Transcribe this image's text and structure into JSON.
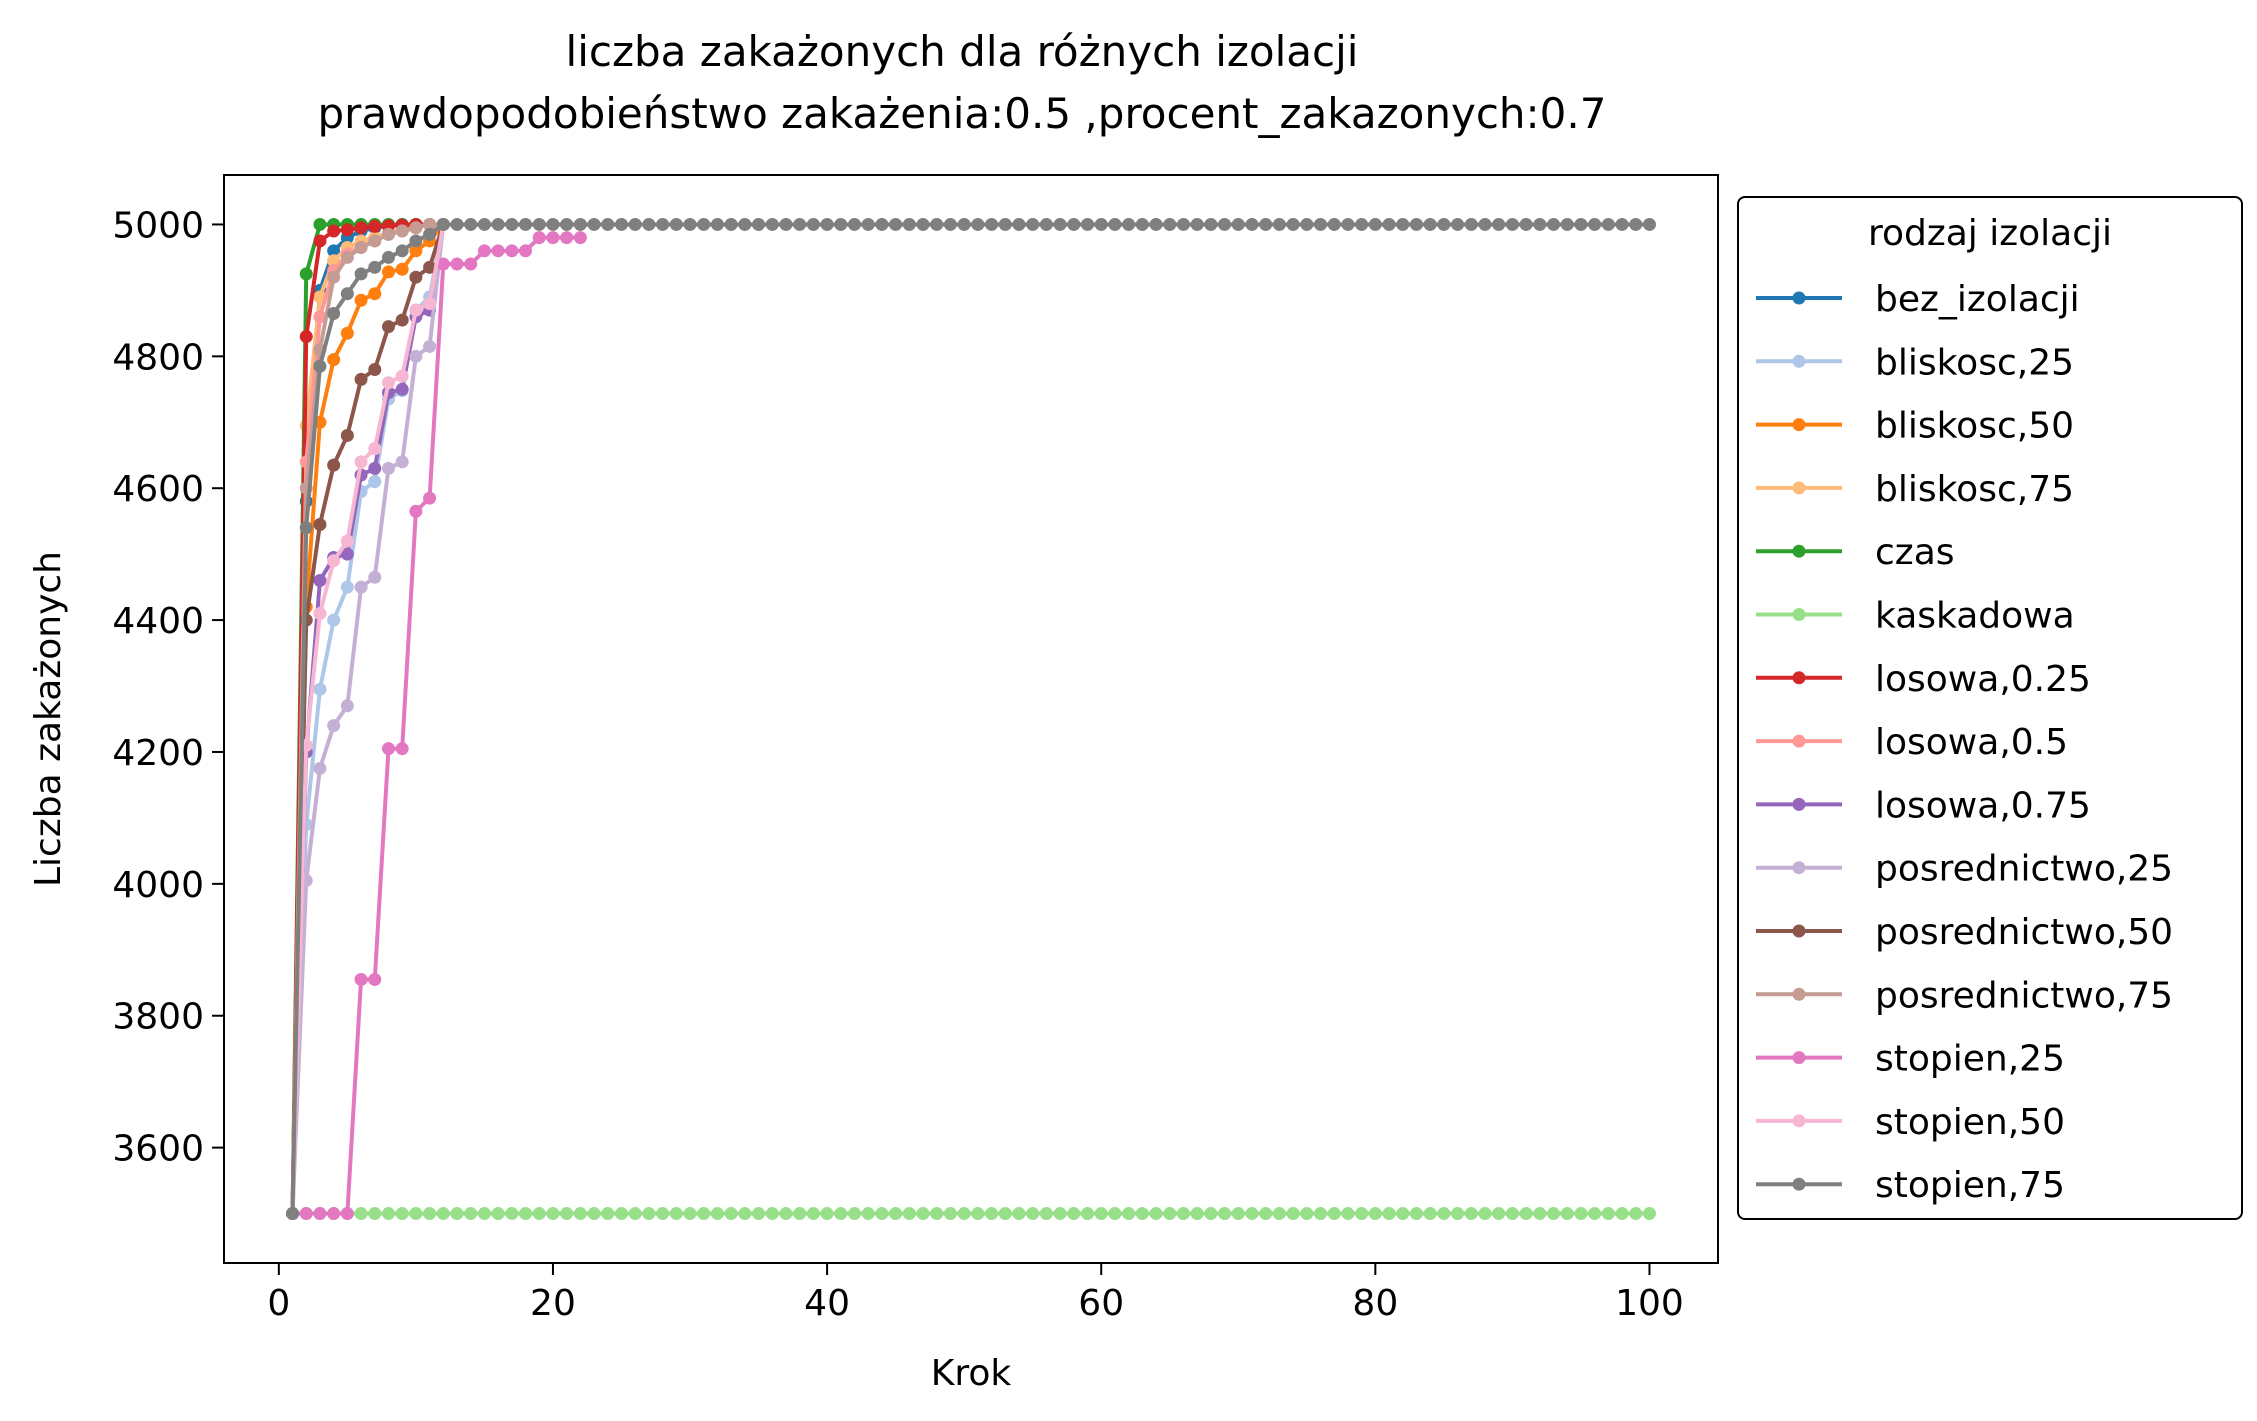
{
  "chart_data": {
    "type": "line",
    "title": "liczba zakażonych dla różnych izolacji",
    "subtitle": "prawdopodobieństwo zakażenia:0.5 ,procent_zakazonych:0.7",
    "xlabel": "Krok",
    "ylabel": "Liczba zakażonych",
    "xlim": [
      -4,
      105
    ],
    "ylim": [
      3425,
      5075
    ],
    "x_ticks": [
      0,
      20,
      40,
      60,
      80,
      100
    ],
    "y_ticks": [
      3600,
      3800,
      4000,
      4200,
      4400,
      4600,
      4800,
      5000
    ],
    "grid": false,
    "legend": {
      "title": "rodzaj izolacji",
      "placement": "outside-right"
    },
    "series": [
      {
        "name": "bez_izolacji",
        "color": "#1f77b4",
        "x": [
          1,
          2,
          3,
          4,
          5,
          6,
          7,
          8,
          9,
          10,
          11,
          12
        ],
        "y": [
          3500,
          4580,
          4900,
          4960,
          4980,
          4990,
          4995,
          4998,
          5000,
          5000,
          5000,
          5000
        ]
      },
      {
        "name": "bliskosc,25",
        "color": "#aec7e8",
        "x": [
          1,
          2,
          3,
          4,
          5,
          6,
          7,
          8,
          9,
          10,
          11,
          12
        ],
        "y": [
          3500,
          4090,
          4295,
          4400,
          4450,
          4595,
          4610,
          4735,
          4748,
          4870,
          4890,
          5000
        ]
      },
      {
        "name": "bliskosc,50",
        "color": "#ff7f0e",
        "x": [
          1,
          2,
          3,
          4,
          5,
          6,
          7,
          8,
          9,
          10,
          11,
          12
        ],
        "y": [
          3500,
          4420,
          4700,
          4795,
          4835,
          4885,
          4895,
          4928,
          4932,
          4960,
          4975,
          5000
        ]
      },
      {
        "name": "bliskosc,75",
        "color": "#ffbb78",
        "x": [
          1,
          2,
          3,
          4,
          5,
          6,
          7,
          8,
          9,
          10,
          11,
          12
        ],
        "y": [
          3500,
          4695,
          4890,
          4945,
          4965,
          4975,
          4980,
          4988,
          4992,
          4996,
          5000,
          5000
        ]
      },
      {
        "name": "czas",
        "color": "#2ca02c",
        "x": [
          1,
          2,
          3,
          4,
          5,
          6,
          7,
          8,
          9,
          10,
          11,
          12
        ],
        "y": [
          3500,
          4925,
          5000,
          5000,
          5000,
          5000,
          5000,
          5000,
          5000,
          5000,
          5000,
          5000
        ]
      },
      {
        "name": "kaskadowa",
        "color": "#98df8a",
        "x": [
          1,
          2,
          3,
          4,
          5,
          6,
          7,
          8,
          9,
          10,
          11,
          12,
          13,
          14,
          15,
          16,
          17,
          18,
          19,
          20,
          21,
          22,
          23,
          24,
          25,
          26,
          27,
          28,
          29,
          30,
          31,
          32,
          33,
          34,
          35,
          36,
          37,
          38,
          39,
          40,
          41,
          42,
          43,
          44,
          45,
          46,
          47,
          48,
          49,
          50,
          51,
          52,
          53,
          54,
          55,
          56,
          57,
          58,
          59,
          60,
          61,
          62,
          63,
          64,
          65,
          66,
          67,
          68,
          69,
          70,
          71,
          72,
          73,
          74,
          75,
          76,
          77,
          78,
          79,
          80,
          81,
          82,
          83,
          84,
          85,
          86,
          87,
          88,
          89,
          90,
          91,
          92,
          93,
          94,
          95,
          96,
          97,
          98,
          99,
          100
        ],
        "y": [
          3500,
          3500,
          3500,
          3500,
          3500,
          3500,
          3500,
          3500,
          3500,
          3500,
          3500,
          3500,
          3500,
          3500,
          3500,
          3500,
          3500,
          3500,
          3500,
          3500,
          3500,
          3500,
          3500,
          3500,
          3500,
          3500,
          3500,
          3500,
          3500,
          3500,
          3500,
          3500,
          3500,
          3500,
          3500,
          3500,
          3500,
          3500,
          3500,
          3500,
          3500,
          3500,
          3500,
          3500,
          3500,
          3500,
          3500,
          3500,
          3500,
          3500,
          3500,
          3500,
          3500,
          3500,
          3500,
          3500,
          3500,
          3500,
          3500,
          3500,
          3500,
          3500,
          3500,
          3500,
          3500,
          3500,
          3500,
          3500,
          3500,
          3500,
          3500,
          3500,
          3500,
          3500,
          3500,
          3500,
          3500,
          3500,
          3500,
          3500,
          3500,
          3500,
          3500,
          3500,
          3500,
          3500,
          3500,
          3500,
          3500,
          3500,
          3500,
          3500,
          3500,
          3500,
          3500,
          3500,
          3500,
          3500,
          3500,
          3500
        ]
      },
      {
        "name": "losowa,0.25",
        "color": "#d62728",
        "x": [
          1,
          2,
          3,
          4,
          5,
          6,
          7,
          8,
          9,
          10,
          11,
          12
        ],
        "y": [
          3500,
          4830,
          4975,
          4990,
          4992,
          4995,
          4997,
          4998,
          4999,
          5000,
          5000,
          5000
        ]
      },
      {
        "name": "losowa,0.5",
        "color": "#ff9896",
        "x": [
          1,
          2,
          3,
          4,
          5,
          6,
          7,
          8,
          9,
          10,
          11,
          12
        ],
        "y": [
          3500,
          4640,
          4860,
          4930,
          4955,
          4965,
          4975,
          4985,
          4990,
          4995,
          5000,
          5000
        ]
      },
      {
        "name": "losowa,0.75",
        "color": "#9467bd",
        "x": [
          1,
          2,
          3,
          4,
          5,
          6,
          7,
          8,
          9,
          10,
          11,
          12
        ],
        "y": [
          3500,
          4200,
          4460,
          4495,
          4500,
          4620,
          4630,
          4745,
          4750,
          4860,
          4870,
          5000
        ]
      },
      {
        "name": "posrednictwo,25",
        "color": "#c5b0d5",
        "x": [
          1,
          2,
          3,
          4,
          5,
          6,
          7,
          8,
          9,
          10,
          11,
          12
        ],
        "y": [
          3500,
          4005,
          4175,
          4240,
          4270,
          4450,
          4465,
          4630,
          4640,
          4800,
          4815,
          5000
        ]
      },
      {
        "name": "posrednictwo,50",
        "color": "#8c564b",
        "x": [
          1,
          2,
          3,
          4,
          5,
          6,
          7,
          8,
          9,
          10,
          11,
          12
        ],
        "y": [
          3500,
          4400,
          4545,
          4635,
          4680,
          4765,
          4780,
          4845,
          4855,
          4920,
          4935,
          5000
        ]
      },
      {
        "name": "posrednictwo,75",
        "color": "#c49c94",
        "x": [
          1,
          2,
          3,
          4,
          5,
          6,
          7,
          8,
          9,
          10,
          11,
          12
        ],
        "y": [
          3500,
          4600,
          4810,
          4920,
          4950,
          4965,
          4975,
          4985,
          4990,
          4995,
          5000,
          5000
        ]
      },
      {
        "name": "stopien,25",
        "color": "#e377c2",
        "x": [
          1,
          2,
          3,
          4,
          5,
          6,
          7,
          8,
          9,
          10,
          11,
          12,
          13,
          14,
          15,
          16,
          17,
          18,
          19,
          20,
          21,
          22
        ],
        "y": [
          3500,
          3500,
          3500,
          3500,
          3500,
          3855,
          3855,
          4205,
          4205,
          4565,
          4585,
          4940,
          4940,
          4940,
          4960,
          4960,
          4960,
          4960,
          4980,
          4980,
          4980,
          4980
        ]
      },
      {
        "name": "stopien,50",
        "color": "#f7b6d2",
        "x": [
          1,
          2,
          3,
          4,
          5,
          6,
          7,
          8,
          9,
          10,
          11,
          12
        ],
        "y": [
          3500,
          4210,
          4410,
          4490,
          4520,
          4640,
          4660,
          4760,
          4770,
          4870,
          4880,
          5000
        ]
      },
      {
        "name": "stopien,75",
        "color": "#7f7f7f",
        "x": [
          1,
          2,
          3,
          4,
          5,
          6,
          7,
          8,
          9,
          10,
          11,
          12,
          13,
          14,
          15,
          16,
          17,
          18,
          19,
          20,
          21,
          22,
          23,
          24,
          25,
          26,
          27,
          28,
          29,
          30,
          31,
          32,
          33,
          34,
          35,
          36,
          37,
          38,
          39,
          40,
          41,
          42,
          43,
          44,
          45,
          46,
          47,
          48,
          49,
          50,
          51,
          52,
          53,
          54,
          55,
          56,
          57,
          58,
          59,
          60,
          61,
          62,
          63,
          64,
          65,
          66,
          67,
          68,
          69,
          70,
          71,
          72,
          73,
          74,
          75,
          76,
          77,
          78,
          79,
          80,
          81,
          82,
          83,
          84,
          85,
          86,
          87,
          88,
          89,
          90,
          91,
          92,
          93,
          94,
          95,
          96,
          97,
          98,
          99,
          100
        ],
        "y": [
          3500,
          4540,
          4785,
          4865,
          4895,
          4925,
          4935,
          4950,
          4960,
          4975,
          4985,
          5000,
          5000,
          5000,
          5000,
          5000,
          5000,
          5000,
          5000,
          5000,
          5000,
          5000,
          5000,
          5000,
          5000,
          5000,
          5000,
          5000,
          5000,
          5000,
          5000,
          5000,
          5000,
          5000,
          5000,
          5000,
          5000,
          5000,
          5000,
          5000,
          5000,
          5000,
          5000,
          5000,
          5000,
          5000,
          5000,
          5000,
          5000,
          5000,
          5000,
          5000,
          5000,
          5000,
          5000,
          5000,
          5000,
          5000,
          5000,
          5000,
          5000,
          5000,
          5000,
          5000,
          5000,
          5000,
          5000,
          5000,
          5000,
          5000,
          5000,
          5000,
          5000,
          5000,
          5000,
          5000,
          5000,
          5000,
          5000,
          5000,
          5000,
          5000,
          5000,
          5000,
          5000,
          5000,
          5000,
          5000,
          5000,
          5000,
          5000,
          5000,
          5000,
          5000,
          5000,
          5000,
          5000,
          5000,
          5000,
          5000
        ]
      }
    ]
  }
}
